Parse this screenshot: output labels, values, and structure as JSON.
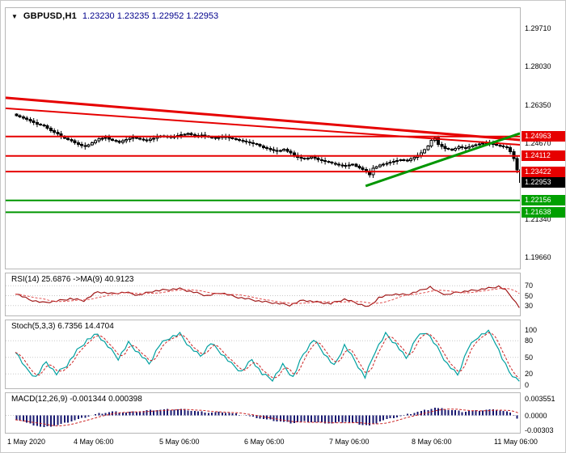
{
  "colors": {
    "red_line": "#e60000",
    "green_line": "#009600",
    "candle": "#000000",
    "rsi_line": "#a01818",
    "rsi_ma_line": "#e05050",
    "stoch_line": "#00a0a0",
    "stoch_signal_line": "#cc2222",
    "macd_hist": "#191970",
    "macd_signal_line": "#cc2222"
  },
  "header": {
    "collapse_icon": "▼",
    "symbol": "GBPUSD,H1",
    "ohlc": "1.23230 1.23235 1.22952 1.22953"
  },
  "price_axis": {
    "ticks": [
      "1.29710",
      "1.28030",
      "1.26350",
      "1.24670",
      "1.22990",
      "1.21340",
      "1.19660"
    ],
    "flags": [
      {
        "label": "1.24963",
        "price": 1.24963,
        "type": "resistance"
      },
      {
        "label": "1.24112",
        "price": 1.24112,
        "type": "resistance"
      },
      {
        "label": "1.23422",
        "price": 1.23422,
        "type": "resistance"
      },
      {
        "label": "1.22953",
        "price": 1.22953,
        "type": "current"
      },
      {
        "label": "1.22156",
        "price": 1.22156,
        "type": "support"
      },
      {
        "label": "1.21638",
        "price": 1.21638,
        "type": "support"
      }
    ]
  },
  "time_axis": {
    "labels": [
      "1 May 2020",
      "4 May 06:00",
      "5 May 06:00",
      "6 May 06:00",
      "7 May 06:00",
      "8 May 06:00",
      "11 May 06:00"
    ]
  },
  "indicator_axes": {
    "rsi": [
      "70",
      "50",
      "30"
    ],
    "stoch": [
      "100",
      "80",
      "50",
      "20",
      "0"
    ],
    "macd": [
      "0.003551",
      "0.0000",
      "-0.00303"
    ]
  },
  "chart_data": [
    {
      "type": "candlestick",
      "title": "GBPUSD,H1",
      "open": 1.2323,
      "high": 1.23235,
      "low": 1.22952,
      "close": 1.22953,
      "bars": 148,
      "price_range": [
        1.19167,
        1.30598
      ],
      "close_path": [
        [
          0,
          1.2588
        ],
        [
          2,
          1.2577
        ],
        [
          4,
          1.2565
        ],
        [
          6,
          1.2551
        ],
        [
          8,
          1.2543
        ],
        [
          10,
          1.2522
        ],
        [
          12,
          1.2507
        ],
        [
          14,
          1.2489
        ],
        [
          16,
          1.2477
        ],
        [
          18,
          1.2461
        ],
        [
          20,
          1.2452
        ],
        [
          22,
          1.2469
        ],
        [
          24,
          1.2487
        ],
        [
          26,
          1.2491
        ],
        [
          28,
          1.2479
        ],
        [
          30,
          1.2471
        ],
        [
          32,
          1.2483
        ],
        [
          34,
          1.2492
        ],
        [
          36,
          1.2485
        ],
        [
          38,
          1.2479
        ],
        [
          40,
          1.2489
        ],
        [
          42,
          1.2499
        ],
        [
          44,
          1.2494
        ],
        [
          46,
          1.2496
        ],
        [
          48,
          1.2504
        ],
        [
          50,
          1.2509
        ],
        [
          52,
          1.2499
        ],
        [
          54,
          1.2503
        ],
        [
          56,
          1.2494
        ],
        [
          58,
          1.2488
        ],
        [
          60,
          1.2496
        ],
        [
          62,
          1.249
        ],
        [
          64,
          1.2483
        ],
        [
          66,
          1.2476
        ],
        [
          68,
          1.2468
        ],
        [
          70,
          1.2461
        ],
        [
          72,
          1.2447
        ],
        [
          74,
          1.2439
        ],
        [
          76,
          1.2431
        ],
        [
          78,
          1.244
        ],
        [
          80,
          1.2424
        ],
        [
          82,
          1.2404
        ],
        [
          84,
          1.2397
        ],
        [
          86,
          1.2407
        ],
        [
          88,
          1.2394
        ],
        [
          90,
          1.2387
        ],
        [
          92,
          1.2379
        ],
        [
          94,
          1.2371
        ],
        [
          96,
          1.2367
        ],
        [
          98,
          1.2374
        ],
        [
          100,
          1.2359
        ],
        [
          102,
          1.2344
        ],
        [
          103,
          1.2328
        ],
        [
          104,
          1.2357
        ],
        [
          106,
          1.2371
        ],
        [
          108,
          1.2379
        ],
        [
          110,
          1.2387
        ],
        [
          112,
          1.2394
        ],
        [
          114,
          1.2391
        ],
        [
          116,
          1.2404
        ],
        [
          118,
          1.2424
        ],
        [
          120,
          1.2454
        ],
        [
          121,
          1.2479
        ],
        [
          122,
          1.249
        ],
        [
          123,
          1.2461
        ],
        [
          125,
          1.2444
        ],
        [
          127,
          1.2437
        ],
        [
          129,
          1.2451
        ],
        [
          131,
          1.2445
        ],
        [
          133,
          1.2457
        ],
        [
          135,
          1.2464
        ],
        [
          137,
          1.2469
        ],
        [
          139,
          1.2461
        ],
        [
          141,
          1.2454
        ],
        [
          143,
          1.2447
        ],
        [
          144,
          1.2429
        ],
        [
          145,
          1.2399
        ],
        [
          146,
          1.2349
        ],
        [
          147,
          1.22953
        ]
      ],
      "levels_red": [
        1.24963,
        1.24112,
        1.23422
      ],
      "levels_green": [
        1.22156,
        1.21638
      ],
      "trendlines": [
        {
          "color": "red",
          "x1": 0,
          "p1": 1.2666,
          "x2": 1,
          "p2": 1.2481,
          "w": 3
        },
        {
          "color": "red",
          "x1": 0,
          "p1": 1.262,
          "x2": 1,
          "p2": 1.246,
          "w": 2
        },
        {
          "color": "green",
          "x1": 0.7,
          "p1": 1.2279,
          "x2": 1,
          "p2": 1.251,
          "w": 3
        }
      ]
    },
    {
      "type": "line",
      "name": "rsi",
      "title": "RSI(14) 25.6876  ->MA(9) 40.9123",
      "value": 25.6876,
      "ma_value": 40.9123,
      "range": [
        10,
        95
      ],
      "levels": [
        70,
        50,
        30
      ],
      "ma_period": 9,
      "anchors": [
        [
          0,
          55
        ],
        [
          4,
          42
        ],
        [
          8,
          36
        ],
        [
          12,
          39
        ],
        [
          16,
          44
        ],
        [
          20,
          40
        ],
        [
          24,
          58
        ],
        [
          28,
          54
        ],
        [
          32,
          57
        ],
        [
          36,
          51
        ],
        [
          40,
          59
        ],
        [
          44,
          62
        ],
        [
          48,
          64
        ],
        [
          52,
          57
        ],
        [
          56,
          50
        ],
        [
          60,
          56
        ],
        [
          64,
          48
        ],
        [
          68,
          43
        ],
        [
          72,
          38
        ],
        [
          76,
          35
        ],
        [
          80,
          31
        ],
        [
          84,
          41
        ],
        [
          88,
          37
        ],
        [
          92,
          34
        ],
        [
          96,
          43
        ],
        [
          100,
          34
        ],
        [
          103,
          27
        ],
        [
          106,
          46
        ],
        [
          110,
          53
        ],
        [
          114,
          52
        ],
        [
          118,
          60
        ],
        [
          121,
          68
        ],
        [
          123,
          58
        ],
        [
          126,
          52
        ],
        [
          129,
          57
        ],
        [
          133,
          60
        ],
        [
          136,
          63
        ],
        [
          139,
          66
        ],
        [
          141,
          69
        ],
        [
          143,
          61
        ],
        [
          145,
          46
        ],
        [
          147,
          25.7
        ]
      ]
    },
    {
      "type": "line",
      "name": "stoch",
      "title": "Stoch(5,3,3) 6.7356 14.4704",
      "value": 6.7356,
      "signal_value": 14.4704,
      "range": [
        -6,
        117
      ],
      "levels": [
        80,
        50,
        20
      ],
      "signal_period": 3,
      "anchors": [
        [
          0,
          62
        ],
        [
          3,
          30
        ],
        [
          6,
          14
        ],
        [
          9,
          42
        ],
        [
          12,
          20
        ],
        [
          15,
          36
        ],
        [
          18,
          62
        ],
        [
          21,
          82
        ],
        [
          24,
          92
        ],
        [
          27,
          70
        ],
        [
          30,
          48
        ],
        [
          33,
          76
        ],
        [
          36,
          58
        ],
        [
          39,
          38
        ],
        [
          42,
          72
        ],
        [
          45,
          86
        ],
        [
          48,
          92
        ],
        [
          51,
          68
        ],
        [
          54,
          52
        ],
        [
          57,
          76
        ],
        [
          60,
          58
        ],
        [
          63,
          38
        ],
        [
          66,
          24
        ],
        [
          69,
          46
        ],
        [
          72,
          20
        ],
        [
          75,
          10
        ],
        [
          78,
          36
        ],
        [
          81,
          14
        ],
        [
          84,
          56
        ],
        [
          87,
          82
        ],
        [
          90,
          58
        ],
        [
          93,
          34
        ],
        [
          96,
          72
        ],
        [
          99,
          44
        ],
        [
          102,
          14
        ],
        [
          105,
          62
        ],
        [
          108,
          92
        ],
        [
          111,
          74
        ],
        [
          114,
          48
        ],
        [
          117,
          86
        ],
        [
          120,
          96
        ],
        [
          123,
          68
        ],
        [
          126,
          38
        ],
        [
          129,
          18
        ],
        [
          132,
          66
        ],
        [
          135,
          88
        ],
        [
          138,
          97
        ],
        [
          140,
          78
        ],
        [
          142,
          48
        ],
        [
          144,
          24
        ],
        [
          146,
          12
        ],
        [
          147,
          6.7
        ]
      ]
    },
    {
      "type": "histogram",
      "name": "macd",
      "title": "MACD(12,26,9) -0.001344 0.000398",
      "value": -0.001344,
      "signal_value": 0.000398,
      "range": [
        -0.003633,
        0.004647
      ],
      "signal_period": 9,
      "anchors": [
        [
          0,
          -0.0008
        ],
        [
          4,
          -0.0018
        ],
        [
          8,
          -0.0025
        ],
        [
          12,
          -0.002
        ],
        [
          16,
          -0.0012
        ],
        [
          20,
          -0.0004
        ],
        [
          24,
          0.0004
        ],
        [
          28,
          0.0008
        ],
        [
          32,
          0.0006
        ],
        [
          36,
          0.0009
        ],
        [
          40,
          0.0011
        ],
        [
          44,
          0.0012
        ],
        [
          48,
          0.0013
        ],
        [
          52,
          0.0009
        ],
        [
          56,
          0.0006
        ],
        [
          60,
          0.0007
        ],
        [
          64,
          0.0003
        ],
        [
          68,
          -0.0002
        ],
        [
          72,
          -0.0008
        ],
        [
          76,
          -0.0012
        ],
        [
          80,
          -0.0016
        ],
        [
          84,
          -0.0013
        ],
        [
          88,
          -0.0015
        ],
        [
          92,
          -0.0017
        ],
        [
          96,
          -0.0013
        ],
        [
          100,
          -0.0018
        ],
        [
          103,
          -0.0022
        ],
        [
          106,
          -0.0012
        ],
        [
          110,
          -0.0005
        ],
        [
          114,
          0.0002
        ],
        [
          118,
          0.0009
        ],
        [
          122,
          0.0016
        ],
        [
          126,
          0.0012
        ],
        [
          130,
          0.0008
        ],
        [
          134,
          0.001
        ],
        [
          138,
          0.0012
        ],
        [
          141,
          0.0011
        ],
        [
          143,
          0.0008
        ],
        [
          145,
          0.0002
        ],
        [
          146,
          -0.0006
        ],
        [
          147,
          -0.001344
        ]
      ]
    }
  ]
}
